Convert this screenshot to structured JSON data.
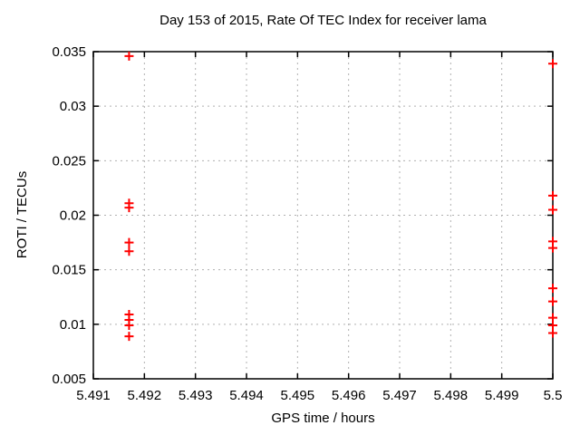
{
  "chart_data": {
    "type": "scatter",
    "title": "Day 153 of 2015, Rate Of TEC Index for receiver lama",
    "xlabel": "GPS time / hours",
    "ylabel": "ROTI / TECUs",
    "xlim": [
      5.491,
      5.5
    ],
    "ylim": [
      0.005,
      0.035
    ],
    "x_tick_values": [
      5.491,
      5.492,
      5.493,
      5.494,
      5.495,
      5.496,
      5.497,
      5.498,
      5.499,
      5.5
    ],
    "x_tick_labels": [
      "5.491",
      "5.492",
      "5.493",
      "5.494",
      "5.495",
      "5.496",
      "5.497",
      "5.498",
      "5.499",
      "5.5"
    ],
    "y_tick_values": [
      0.005,
      0.01,
      0.015,
      0.02,
      0.025,
      0.03,
      0.035
    ],
    "y_tick_labels": [
      "0.005",
      "0.01",
      "0.015",
      "0.02",
      "0.025",
      "0.03",
      "0.035"
    ],
    "grid": true,
    "legend": "none",
    "marker_style": "plus",
    "series": [
      {
        "name": "ROTI",
        "color": "#ff0000",
        "points": [
          [
            5.4917,
            0.0346
          ],
          [
            5.4917,
            0.0211
          ],
          [
            5.4917,
            0.0207
          ],
          [
            5.4917,
            0.0175
          ],
          [
            5.4917,
            0.0167
          ],
          [
            5.4917,
            0.0109
          ],
          [
            5.4917,
            0.0104
          ],
          [
            5.4917,
            0.0099
          ],
          [
            5.4917,
            0.0089
          ],
          [
            5.5,
            0.0339
          ],
          [
            5.5,
            0.0218
          ],
          [
            5.5,
            0.0205
          ],
          [
            5.5,
            0.0176
          ],
          [
            5.5,
            0.017
          ],
          [
            5.5,
            0.0133
          ],
          [
            5.5,
            0.0121
          ],
          [
            5.5,
            0.0106
          ],
          [
            5.5,
            0.0099
          ],
          [
            5.5,
            0.0092
          ]
        ]
      }
    ],
    "colors": {
      "marker": "#ff0000",
      "grid": "#b0b0b0",
      "border": "#000000",
      "text": "#000000",
      "background": "#ffffff"
    }
  }
}
